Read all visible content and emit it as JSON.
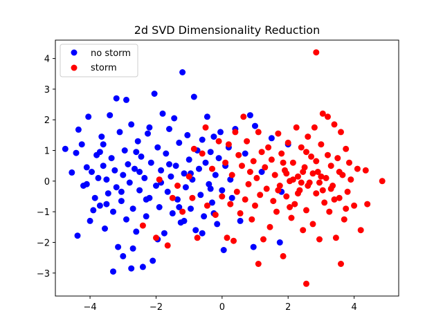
{
  "chart_data": {
    "type": "scatter",
    "title": "2d SVD Dimensionality Reduction",
    "xlabel": "",
    "ylabel": "",
    "xlim": [
      -5.05,
      5.35
    ],
    "ylim": [
      -3.75,
      4.6
    ],
    "xticks": [
      -4,
      -2,
      0,
      2,
      4
    ],
    "yticks": [
      -3,
      -2,
      -1,
      0,
      1,
      2,
      3,
      4
    ],
    "xtick_labels": [
      "−4",
      "−2",
      "0",
      "2",
      "4"
    ],
    "ytick_labels": [
      "−3",
      "−2",
      "−1",
      "0",
      "1",
      "2",
      "3",
      "4"
    ],
    "grid": false,
    "legend_position": "upper-left",
    "series": [
      {
        "name": "no storm",
        "color": "#0000ff",
        "points": [
          [
            -4.75,
            1.05
          ],
          [
            -4.55,
            0.28
          ],
          [
            -4.42,
            0.92
          ],
          [
            -4.38,
            -1.78
          ],
          [
            -4.35,
            1.68
          ],
          [
            -4.25,
            1.2
          ],
          [
            -4.2,
            -0.15
          ],
          [
            -4.1,
            0.45
          ],
          [
            -4.05,
            2.1
          ],
          [
            -4.0,
            -1.3
          ],
          [
            -3.95,
            0.3
          ],
          [
            -3.85,
            -0.55
          ],
          [
            -3.8,
            0.85
          ],
          [
            -3.75,
            0.1
          ],
          [
            -3.7,
            -0.8
          ],
          [
            -3.65,
            1.45
          ],
          [
            -3.6,
            0.5
          ],
          [
            -3.55,
            -1.55
          ],
          [
            -3.5,
            0.05
          ],
          [
            -3.45,
            -0.4
          ],
          [
            -3.4,
            2.15
          ],
          [
            -3.35,
            0.75
          ],
          [
            -3.3,
            -1.0
          ],
          [
            -3.25,
            0.35
          ],
          [
            -3.2,
            -0.2
          ],
          [
            -3.15,
            -2.15
          ],
          [
            -3.1,
            1.6
          ],
          [
            -3.05,
            -0.65
          ],
          [
            -3.0,
            0.2
          ],
          [
            -2.95,
            1.0
          ],
          [
            -2.9,
            -1.25
          ],
          [
            -2.85,
            0.55
          ],
          [
            -2.8,
            -0.05
          ],
          [
            -2.75,
            1.85
          ],
          [
            -2.7,
            -0.9
          ],
          [
            -2.65,
            0.4
          ],
          [
            -2.6,
            -1.65
          ],
          [
            -2.55,
            1.3
          ],
          [
            -2.5,
            -0.3
          ],
          [
            -2.45,
            0.8
          ],
          [
            -2.4,
            -2.8
          ],
          [
            -2.35,
            0.1
          ],
          [
            -2.3,
            -1.15
          ],
          [
            -2.25,
            1.55
          ],
          [
            -2.2,
            -0.55
          ],
          [
            -2.15,
            0.6
          ],
          [
            -2.1,
            -2.6
          ],
          [
            -2.05,
            2.85
          ],
          [
            -2.0,
            -0.15
          ],
          [
            -1.95,
            1.1
          ],
          [
            -1.9,
            -0.85
          ],
          [
            -1.85,
            0.35
          ],
          [
            -1.8,
            2.2
          ],
          [
            -1.75,
            -1.7
          ],
          [
            -1.7,
            0.9
          ],
          [
            -1.65,
            -0.35
          ],
          [
            -1.6,
            1.7
          ],
          [
            -1.55,
            0.15
          ],
          [
            -1.5,
            -1.05
          ],
          [
            -1.45,
            2.05
          ],
          [
            -1.4,
            0.5
          ],
          [
            -1.35,
            -0.6
          ],
          [
            -1.3,
            1.25
          ],
          [
            -1.25,
            -1.35
          ],
          [
            -1.2,
            3.55
          ],
          [
            -1.15,
            0.25
          ],
          [
            -1.1,
            -0.2
          ],
          [
            -1.05,
            1.5
          ],
          [
            -1.0,
            0.7
          ],
          [
            -0.95,
            -0.9
          ],
          [
            -0.9,
            0.05
          ],
          [
            -0.85,
            2.75
          ],
          [
            -0.8,
            -1.6
          ],
          [
            -0.75,
            1.0
          ],
          [
            -0.7,
            0.4
          ],
          [
            -0.65,
            -0.45
          ],
          [
            -0.6,
            1.35
          ],
          [
            -0.55,
            -1.15
          ],
          [
            -0.5,
            0.6
          ],
          [
            -0.45,
            2.1
          ],
          [
            -0.4,
            -0.1
          ],
          [
            -0.35,
            0.95
          ],
          [
            -0.3,
            -0.7
          ],
          [
            -0.25,
            1.45
          ],
          [
            -0.2,
            0.2
          ],
          [
            -0.15,
            -1.4
          ],
          [
            -0.1,
            0.75
          ],
          [
            -0.05,
            1.6
          ],
          [
            0.0,
            -0.3
          ],
          [
            0.05,
            -2.25
          ],
          [
            0.1,
            0.5
          ],
          [
            0.2,
            1.1
          ],
          [
            0.3,
            -0.55
          ],
          [
            0.4,
            1.7
          ],
          [
            0.55,
            -1.3
          ],
          [
            0.7,
            0.9
          ],
          [
            0.85,
            2.15
          ],
          [
            1.0,
            1.8
          ],
          [
            1.2,
            0.3
          ],
          [
            1.5,
            1.4
          ],
          [
            1.8,
            -0.35
          ],
          [
            2.0,
            1.2
          ],
          [
            1.75,
            -2.0
          ],
          [
            0.95,
            -2.15
          ],
          [
            -3.2,
            2.7
          ],
          [
            -2.9,
            2.65
          ],
          [
            -3.6,
            1.2
          ],
          [
            -3.9,
            -0.95
          ],
          [
            -2.6,
            0.95
          ],
          [
            -2.3,
            -0.6
          ],
          [
            -1.95,
            -1.9
          ],
          [
            -1.3,
            -0.85
          ],
          [
            -0.6,
            -1.7
          ],
          [
            -3.0,
            -2.45
          ],
          [
            -2.7,
            -2.2
          ],
          [
            -3.3,
            -2.95
          ],
          [
            -2.75,
            -2.85
          ],
          [
            -4.1,
            -0.1
          ],
          [
            -3.7,
            0.95
          ],
          [
            -2.2,
            1.75
          ],
          [
            -1.6,
            0.55
          ],
          [
            -0.95,
            0.25
          ],
          [
            -0.35,
            -0.25
          ],
          [
            0.25,
            0.05
          ],
          [
            -1.85,
            -0.05
          ],
          [
            -2.5,
            0.3
          ],
          [
            -3.05,
            -0.35
          ],
          [
            -3.5,
            -0.75
          ],
          [
            -1.15,
            -1.3
          ],
          [
            -0.25,
            -1.05
          ]
        ]
      },
      {
        "name": "storm",
        "color": "#ff0000",
        "points": [
          [
            2.85,
            4.2
          ],
          [
            2.55,
            -3.35
          ],
          [
            1.1,
            -2.7
          ],
          [
            3.6,
            -2.7
          ],
          [
            4.85,
            0.0
          ],
          [
            4.4,
            -0.75
          ],
          [
            4.35,
            0.35
          ],
          [
            4.2,
            -1.6
          ],
          [
            4.1,
            0.4
          ],
          [
            4.0,
            -0.8
          ],
          [
            3.9,
            0.05
          ],
          [
            3.85,
            0.6
          ],
          [
            3.8,
            -0.35
          ],
          [
            3.75,
            1.05
          ],
          [
            3.7,
            -1.25
          ],
          [
            3.65,
            0.2
          ],
          [
            3.6,
            1.6
          ],
          [
            3.55,
            -0.55
          ],
          [
            3.5,
            0.75
          ],
          [
            3.45,
            -1.85
          ],
          [
            3.4,
            1.85
          ],
          [
            3.35,
            -0.15
          ],
          [
            3.3,
            0.5
          ],
          [
            3.25,
            -1.0
          ],
          [
            3.2,
            2.1
          ],
          [
            3.15,
            0.1
          ],
          [
            3.1,
            -0.7
          ],
          [
            3.05,
            2.2
          ],
          [
            3.0,
            1.2
          ],
          [
            2.95,
            -1.9
          ],
          [
            2.9,
            0.3
          ],
          [
            2.85,
            -0.4
          ],
          [
            2.8,
            1.75
          ],
          [
            2.75,
            -1.4
          ],
          [
            2.7,
            0.8
          ],
          [
            2.65,
            -0.05
          ],
          [
            2.6,
            1.45
          ],
          [
            2.55,
            -0.95
          ],
          [
            2.5,
            0.45
          ],
          [
            2.45,
            -1.6
          ],
          [
            2.4,
            1.1
          ],
          [
            2.35,
            -0.3
          ],
          [
            2.3,
            0.15
          ],
          [
            2.25,
            1.75
          ],
          [
            2.2,
            -0.75
          ],
          [
            2.15,
            0.6
          ],
          [
            2.1,
            -1.2
          ],
          [
            2.05,
            0.0
          ],
          [
            2.0,
            1.25
          ],
          [
            1.95,
            -0.5
          ],
          [
            1.9,
            0.35
          ],
          [
            1.85,
            -2.45
          ],
          [
            1.8,
            0.9
          ],
          [
            1.75,
            -0.15
          ],
          [
            1.7,
            1.55
          ],
          [
            1.65,
            -1.0
          ],
          [
            1.6,
            0.2
          ],
          [
            1.55,
            -0.65
          ],
          [
            1.5,
            0.7
          ],
          [
            1.45,
            -1.5
          ],
          [
            1.4,
            1.1
          ],
          [
            1.35,
            -0.25
          ],
          [
            1.3,
            0.45
          ],
          [
            1.25,
            -1.9
          ],
          [
            1.2,
            0.95
          ],
          [
            1.15,
            -0.45
          ],
          [
            1.1,
            1.6
          ],
          [
            1.05,
            0.1
          ],
          [
            1.0,
            -0.8
          ],
          [
            0.95,
            0.65
          ],
          [
            0.9,
            -1.25
          ],
          [
            0.85,
            0.3
          ],
          [
            0.8,
            -0.1
          ],
          [
            0.75,
            1.3
          ],
          [
            0.7,
            -0.6
          ],
          [
            0.65,
            2.1
          ],
          [
            0.6,
            0.5
          ],
          [
            0.55,
            -1.05
          ],
          [
            0.5,
            0.85
          ],
          [
            0.45,
            -0.35
          ],
          [
            0.4,
            1.6
          ],
          [
            0.35,
            -1.95
          ],
          [
            0.3,
            0.2
          ],
          [
            0.25,
            -0.75
          ],
          [
            0.2,
            1.2
          ],
          [
            0.15,
            -1.85
          ],
          [
            0.1,
            0.6
          ],
          [
            0.0,
            -0.5
          ],
          [
            -0.1,
            1.3
          ],
          [
            -0.2,
            -1.1
          ],
          [
            -0.3,
            0.4
          ],
          [
            -0.45,
            -0.8
          ],
          [
            -0.6,
            0.9
          ],
          [
            -0.75,
            -1.85
          ],
          [
            -0.85,
            1.05
          ],
          [
            -1.0,
            0.15
          ],
          [
            -1.2,
            -1.0
          ],
          [
            -1.35,
            -0.15
          ],
          [
            -1.5,
            -0.55
          ],
          [
            -1.65,
            -2.1
          ],
          [
            -1.9,
            0.05
          ],
          [
            -2.0,
            -1.85
          ],
          [
            -2.4,
            -1.45
          ],
          [
            -0.9,
            -0.55
          ],
          [
            -0.5,
            1.75
          ],
          [
            2.6,
            -0.15
          ],
          [
            2.75,
            0.25
          ],
          [
            2.95,
            -0.05
          ],
          [
            3.05,
            -0.3
          ],
          [
            2.3,
            -0.4
          ],
          [
            2.45,
            0.3
          ],
          [
            2.15,
            0.05
          ],
          [
            1.95,
            0.25
          ],
          [
            3.4,
            -0.6
          ],
          [
            3.55,
            0.3
          ],
          [
            2.85,
            0.65
          ],
          [
            2.05,
            -0.85
          ],
          [
            1.7,
            -0.3
          ],
          [
            3.2,
            0.85
          ],
          [
            3.75,
            -0.9
          ],
          [
            2.55,
            0.95
          ],
          [
            3.0,
            0.15
          ],
          [
            2.4,
            -0.05
          ],
          [
            1.85,
            0.6
          ],
          [
            3.3,
            -0.25
          ]
        ]
      }
    ]
  }
}
